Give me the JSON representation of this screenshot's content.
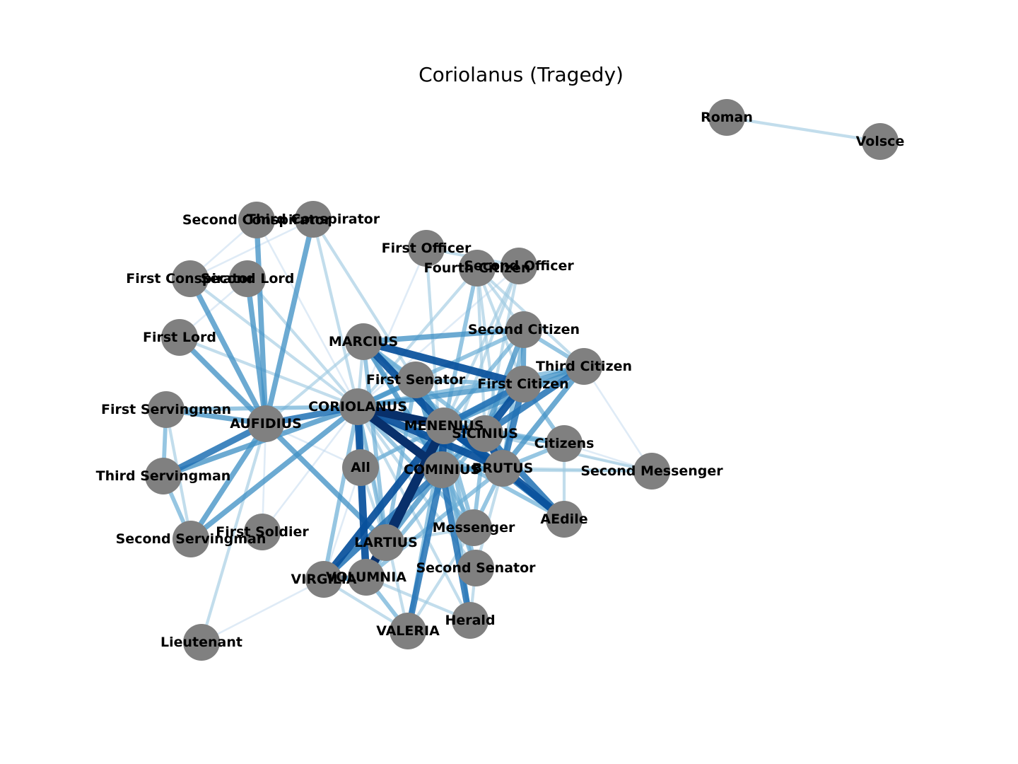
{
  "title": "Coriolanus (Tragedy)",
  "node_color": "#808080",
  "edge_colormap": [
    "#c6dbef",
    "#9ecae1",
    "#6baed6",
    "#4292c6",
    "#2171b5",
    "#08519c",
    "#08306b"
  ],
  "nodes": [
    {
      "id": "Roman",
      "label": "Roman"
    },
    {
      "id": "Volsce",
      "label": "Volsce"
    },
    {
      "id": "Second Conspirator",
      "label": "Second Conspirator"
    },
    {
      "id": "Third Conspirator",
      "label": "Third Conspirator"
    },
    {
      "id": "First Officer",
      "label": "First Officer"
    },
    {
      "id": "Fourth Citizen",
      "label": "Fourth Citizen"
    },
    {
      "id": "Second Officer",
      "label": "Second Officer"
    },
    {
      "id": "First Conspirator",
      "label": "First Conspirator"
    },
    {
      "id": "Second Lord",
      "label": "Second Lord"
    },
    {
      "id": "First Lord",
      "label": "First Lord"
    },
    {
      "id": "MARCIUS",
      "label": "MARCIUS"
    },
    {
      "id": "Second Citizen",
      "label": "Second Citizen"
    },
    {
      "id": "Third Citizen",
      "label": "Third Citizen"
    },
    {
      "id": "First Senator",
      "label": "First Senator"
    },
    {
      "id": "First Citizen",
      "label": "First Citizen"
    },
    {
      "id": "CORIOLANUS",
      "label": "CORIOLANUS"
    },
    {
      "id": "First Servingman",
      "label": "First Servingman"
    },
    {
      "id": "AUFIDIUS",
      "label": "AUFIDIUS"
    },
    {
      "id": "MENENIUS",
      "label": "MENENIUS"
    },
    {
      "id": "SICINIUS",
      "label": "SICINIUS"
    },
    {
      "id": "Citizens",
      "label": "Citizens"
    },
    {
      "id": "All",
      "label": "All"
    },
    {
      "id": "COMINIUS",
      "label": "COMINIUS"
    },
    {
      "id": "BRUTUS",
      "label": "BRUTUS"
    },
    {
      "id": "Second Messenger",
      "label": "Second Messenger"
    },
    {
      "id": "Third Servingman",
      "label": "Third Servingman"
    },
    {
      "id": "AEdile",
      "label": "AEdile"
    },
    {
      "id": "First Soldier",
      "label": "First Soldier"
    },
    {
      "id": "Second Servingman",
      "label": "Second Servingman"
    },
    {
      "id": "Messenger",
      "label": "Messenger"
    },
    {
      "id": "LARTIUS",
      "label": "LARTIUS"
    },
    {
      "id": "Second Senator",
      "label": "Second Senator"
    },
    {
      "id": "VIRGILIA",
      "label": "VIRGILIA"
    },
    {
      "id": "VOLUMNIA",
      "label": "VOLUMNIA"
    },
    {
      "id": "Herald",
      "label": "Herald"
    },
    {
      "id": "VALERIA",
      "label": "VALERIA"
    },
    {
      "id": "Lieutenant",
      "label": "Lieutenant"
    }
  ],
  "edges": [
    {
      "source": "Roman",
      "target": "Volsce",
      "weight": 2
    },
    {
      "source": "CORIOLANUS",
      "target": "MENENIUS",
      "weight": 7
    },
    {
      "source": "CORIOLANUS",
      "target": "COMINIUS",
      "weight": 7
    },
    {
      "source": "CORIOLANUS",
      "target": "SICINIUS",
      "weight": 6
    },
    {
      "source": "CORIOLANUS",
      "target": "BRUTUS",
      "weight": 6
    },
    {
      "source": "CORIOLANUS",
      "target": "VOLUMNIA",
      "weight": 6
    },
    {
      "source": "CORIOLANUS",
      "target": "AUFIDIUS",
      "weight": 5
    },
    {
      "source": "CORIOLANUS",
      "target": "Second Servingman",
      "weight": 4
    },
    {
      "source": "CORIOLANUS",
      "target": "Third Servingman",
      "weight": 4
    },
    {
      "source": "CORIOLANUS",
      "target": "First Servingman",
      "weight": 3
    },
    {
      "source": "CORIOLANUS",
      "target": "First Senator",
      "weight": 4
    },
    {
      "source": "CORIOLANUS",
      "target": "First Citizen",
      "weight": 4
    },
    {
      "source": "CORIOLANUS",
      "target": "Second Citizen",
      "weight": 3
    },
    {
      "source": "CORIOLANUS",
      "target": "Third Citizen",
      "weight": 3
    },
    {
      "source": "CORIOLANUS",
      "target": "Fourth Citizen",
      "weight": 2
    },
    {
      "source": "CORIOLANUS",
      "target": "Citizens",
      "weight": 3
    },
    {
      "source": "CORIOLANUS",
      "target": "VIRGILIA",
      "weight": 3
    },
    {
      "source": "CORIOLANUS",
      "target": "LARTIUS",
      "weight": 3
    },
    {
      "source": "CORIOLANUS",
      "target": "All",
      "weight": 3
    },
    {
      "source": "CORIOLANUS",
      "target": "AEdile",
      "weight": 3
    },
    {
      "source": "CORIOLANUS",
      "target": "Messenger",
      "weight": 3
    },
    {
      "source": "CORIOLANUS",
      "target": "Herald",
      "weight": 2
    },
    {
      "source": "CORIOLANUS",
      "target": "First Lord",
      "weight": 2
    },
    {
      "source": "CORIOLANUS",
      "target": "Second Lord",
      "weight": 2
    },
    {
      "source": "CORIOLANUS",
      "target": "First Conspirator",
      "weight": 2
    },
    {
      "source": "CORIOLANUS",
      "target": "Second Conspirator",
      "weight": 1
    },
    {
      "source": "CORIOLANUS",
      "target": "Third Conspirator",
      "weight": 2
    },
    {
      "source": "CORIOLANUS",
      "target": "First Soldier",
      "weight": 1
    },
    {
      "source": "CORIOLANUS",
      "target": "Second Senator",
      "weight": 2
    },
    {
      "source": "CORIOLANUS",
      "target": "VALERIA",
      "weight": 2
    },
    {
      "source": "CORIOLANUS",
      "target": "First Officer",
      "weight": 1
    },
    {
      "source": "CORIOLANUS",
      "target": "Second Officer",
      "weight": 1
    },
    {
      "source": "CORIOLANUS",
      "target": "MARCIUS",
      "weight": 2
    },
    {
      "source": "CORIOLANUS",
      "target": "Second Messenger",
      "weight": 1
    },
    {
      "source": "AUFIDIUS",
      "target": "Third Conspirator",
      "weight": 4
    },
    {
      "source": "AUFIDIUS",
      "target": "Second Conspirator",
      "weight": 4
    },
    {
      "source": "AUFIDIUS",
      "target": "Second Lord",
      "weight": 4
    },
    {
      "source": "AUFIDIUS",
      "target": "First Conspirator",
      "weight": 4
    },
    {
      "source": "AUFIDIUS",
      "target": "First Lord",
      "weight": 4
    },
    {
      "source": "AUFIDIUS",
      "target": "First Servingman",
      "weight": 4
    },
    {
      "source": "AUFIDIUS",
      "target": "Third Servingman",
      "weight": 5
    },
    {
      "source": "AUFIDIUS",
      "target": "Second Servingman",
      "weight": 4
    },
    {
      "source": "AUFIDIUS",
      "target": "LARTIUS",
      "weight": 4
    },
    {
      "source": "AUFIDIUS",
      "target": "Lieutenant",
      "weight": 2
    },
    {
      "source": "AUFIDIUS",
      "target": "First Soldier",
      "weight": 1
    },
    {
      "source": "AUFIDIUS",
      "target": "MARCIUS",
      "weight": 2
    },
    {
      "source": "AUFIDIUS",
      "target": "All",
      "weight": 1
    },
    {
      "source": "First Servingman",
      "target": "Third Servingman",
      "weight": 3
    },
    {
      "source": "Third Servingman",
      "target": "Second Servingman",
      "weight": 3
    },
    {
      "source": "First Servingman",
      "target": "Second Servingman",
      "weight": 2
    },
    {
      "source": "First Conspirator",
      "target": "Second Conspirator",
      "weight": 1
    },
    {
      "source": "First Conspirator",
      "target": "Third Conspirator",
      "weight": 1
    },
    {
      "source": "Second Conspirator",
      "target": "Third Conspirator",
      "weight": 1
    },
    {
      "source": "Second Lord",
      "target": "First Lord",
      "weight": 1
    },
    {
      "source": "Third Conspirator",
      "target": "MENENIUS",
      "weight": 2
    },
    {
      "source": "MARCIUS",
      "target": "First Citizen",
      "weight": 6
    },
    {
      "source": "MARCIUS",
      "target": "Second Citizen",
      "weight": 4
    },
    {
      "source": "MARCIUS",
      "target": "MENENIUS",
      "weight": 6
    },
    {
      "source": "MARCIUS",
      "target": "COMINIUS",
      "weight": 4
    },
    {
      "source": "MARCIUS",
      "target": "LARTIUS",
      "weight": 3
    },
    {
      "source": "MARCIUS",
      "target": "First Senator",
      "weight": 3
    },
    {
      "source": "MARCIUS",
      "target": "SICINIUS",
      "weight": 3
    },
    {
      "source": "MARCIUS",
      "target": "BRUTUS",
      "weight": 3
    },
    {
      "source": "MARCIUS",
      "target": "Messenger",
      "weight": 2
    },
    {
      "source": "MENENIUS",
      "target": "VIRGILIA",
      "weight": 6
    },
    {
      "source": "MENENIUS",
      "target": "VOLUMNIA",
      "weight": 7
    },
    {
      "source": "MENENIUS",
      "target": "LARTIUS",
      "weight": 7
    },
    {
      "source": "MENENIUS",
      "target": "SICINIUS",
      "weight": 6
    },
    {
      "source": "MENENIUS",
      "target": "BRUTUS",
      "weight": 6
    },
    {
      "source": "MENENIUS",
      "target": "COMINIUS",
      "weight": 6
    },
    {
      "source": "MENENIUS",
      "target": "First Citizen",
      "weight": 5
    },
    {
      "source": "MENENIUS",
      "target": "Second Citizen",
      "weight": 3
    },
    {
      "source": "MENENIUS",
      "target": "Third Citizen",
      "weight": 4
    },
    {
      "source": "MENENIUS",
      "target": "Fourth Citizen",
      "weight": 3
    },
    {
      "source": "MENENIUS",
      "target": "First Senator",
      "weight": 4
    },
    {
      "source": "MENENIUS",
      "target": "AEdile",
      "weight": 5
    },
    {
      "source": "MENENIUS",
      "target": "Citizens",
      "weight": 3
    },
    {
      "source": "MENENIUS",
      "target": "Second Officer",
      "weight": 2
    },
    {
      "source": "MENENIUS",
      "target": "Messenger",
      "weight": 3
    },
    {
      "source": "MENENIUS",
      "target": "Second Senator",
      "weight": 3
    },
    {
      "source": "MENENIUS",
      "target": "Herald",
      "weight": 3
    },
    {
      "source": "MENENIUS",
      "target": "VALERIA",
      "weight": 3
    },
    {
      "source": "MENENIUS",
      "target": "All",
      "weight": 2
    },
    {
      "source": "COMINIUS",
      "target": "VALERIA",
      "weight": 5
    },
    {
      "source": "COMINIUS",
      "target": "Herald",
      "weight": 5
    },
    {
      "source": "COMINIUS",
      "target": "VIRGILIA",
      "weight": 5
    },
    {
      "source": "COMINIUS",
      "target": "Messenger",
      "weight": 3
    },
    {
      "source": "COMINIUS",
      "target": "Second Senator",
      "weight": 3
    },
    {
      "source": "COMINIUS",
      "target": "LARTIUS",
      "weight": 4
    },
    {
      "source": "COMINIUS",
      "target": "SICINIUS",
      "weight": 4
    },
    {
      "source": "COMINIUS",
      "target": "BRUTUS",
      "weight": 4
    },
    {
      "source": "COMINIUS",
      "target": "First Citizen",
      "weight": 3
    },
    {
      "source": "COMINIUS",
      "target": "Second Messenger",
      "weight": 2
    },
    {
      "source": "COMINIUS",
      "target": "First Officer",
      "weight": 2
    },
    {
      "source": "SICINIUS",
      "target": "BRUTUS",
      "weight": 6
    },
    {
      "source": "SICINIUS",
      "target": "First Citizen",
      "weight": 6
    },
    {
      "source": "SICINIUS",
      "target": "Third Citizen",
      "weight": 5
    },
    {
      "source": "SICINIUS",
      "target": "Second Citizen",
      "weight": 4
    },
    {
      "source": "SICINIUS",
      "target": "AEdile",
      "weight": 5
    },
    {
      "source": "SICINIUS",
      "target": "Citizens",
      "weight": 3
    },
    {
      "source": "SICINIUS",
      "target": "Second Messenger",
      "weight": 2
    },
    {
      "source": "SICINIUS",
      "target": "Messenger",
      "weight": 3
    },
    {
      "source": "SICINIUS",
      "target": "VOLUMNIA",
      "weight": 3
    },
    {
      "source": "SICINIUS",
      "target": "Fourth Citizen",
      "weight": 2
    },
    {
      "source": "SICINIUS",
      "target": "Second Officer",
      "weight": 2
    },
    {
      "source": "BRUTUS",
      "target": "AEdile",
      "weight": 6
    },
    {
      "source": "BRUTUS",
      "target": "First Citizen",
      "weight": 5
    },
    {
      "source": "BRUTUS",
      "target": "Third Citizen",
      "weight": 4
    },
    {
      "source": "BRUTUS",
      "target": "Second Citizen",
      "weight": 3
    },
    {
      "source": "BRUTUS",
      "target": "Citizens",
      "weight": 3
    },
    {
      "source": "BRUTUS",
      "target": "Second Messenger",
      "weight": 2
    },
    {
      "source": "BRUTUS",
      "target": "Messenger",
      "weight": 3
    },
    {
      "source": "BRUTUS",
      "target": "VOLUMNIA",
      "weight": 3
    },
    {
      "source": "BRUTUS",
      "target": "Second Senator",
      "weight": 2
    },
    {
      "source": "BRUTUS",
      "target": "Fourth Citizen",
      "weight": 2
    },
    {
      "source": "VOLUMNIA",
      "target": "VIRGILIA",
      "weight": 4
    },
    {
      "source": "VOLUMNIA",
      "target": "VALERIA",
      "weight": 3
    },
    {
      "source": "VOLUMNIA",
      "target": "Herald",
      "weight": 2
    },
    {
      "source": "VIRGILIA",
      "target": "VALERIA",
      "weight": 2
    },
    {
      "source": "LARTIUS",
      "target": "First Senator",
      "weight": 3
    },
    {
      "source": "LARTIUS",
      "target": "Messenger",
      "weight": 2
    },
    {
      "source": "LARTIUS",
      "target": "All",
      "weight": 2
    },
    {
      "source": "First Citizen",
      "target": "Second Citizen",
      "weight": 4
    },
    {
      "source": "First Citizen",
      "target": "Third Citizen",
      "weight": 4
    },
    {
      "source": "First Citizen",
      "target": "Fourth Citizen",
      "weight": 2
    },
    {
      "source": "First Citizen",
      "target": "All",
      "weight": 3
    },
    {
      "source": "First Citizen",
      "target": "Citizens",
      "weight": 3
    },
    {
      "source": "Second Citizen",
      "target": "Third Citizen",
      "weight": 3
    },
    {
      "source": "Second Citizen",
      "target": "Fourth Citizen",
      "weight": 2
    },
    {
      "source": "Third Citizen",
      "target": "Fourth Citizen",
      "weight": 2
    },
    {
      "source": "Second Officer",
      "target": "First Officer",
      "weight": 2
    },
    {
      "source": "Second Officer",
      "target": "COMINIUS",
      "weight": 2
    },
    {
      "source": "First Senator",
      "target": "Second Senator",
      "weight": 2
    },
    {
      "source": "First Senator",
      "target": "COMINIUS",
      "weight": 4
    },
    {
      "source": "First Senator",
      "target": "First Citizen",
      "weight": 3
    },
    {
      "source": "Third Citizen",
      "target": "Second Messenger",
      "weight": 1
    },
    {
      "source": "AEdile",
      "target": "Citizens",
      "weight": 2
    },
    {
      "source": "Citizens",
      "target": "Second Messenger",
      "weight": 1
    },
    {
      "source": "Herald",
      "target": "Second Senator",
      "weight": 2
    },
    {
      "source": "All",
      "target": "VIRGILIA",
      "weight": 1
    },
    {
      "source": "VALERIA",
      "target": "Messenger",
      "weight": 2
    },
    {
      "source": "Lieutenant",
      "target": "VIRGILIA",
      "weight": 1
    }
  ]
}
